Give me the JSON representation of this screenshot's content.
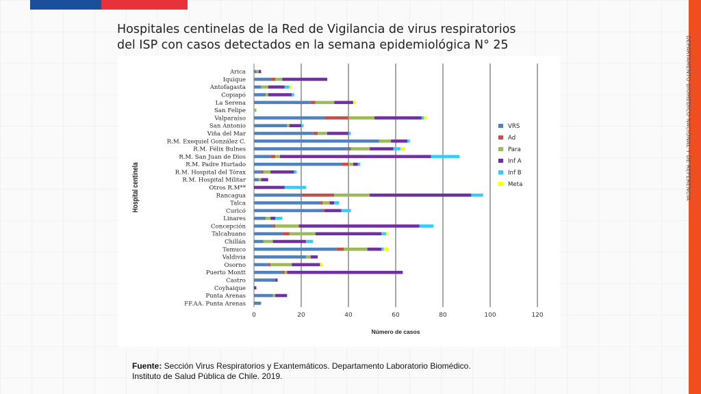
{
  "header": {
    "title_line1": "Hospitales centinelas de la Red de Vigilancia de virus respiratorios",
    "title_line2": "del ISP con casos detectados en la semana epidemiológica N° 25"
  },
  "side_label": "DEPARTAMENTO BIOMÉDICO NACIONAL Y DE REFERENCIA",
  "footer": {
    "label": "Fuente:",
    "line1": " Sección Virus Respiratorios y Exantemáticos. Departamento Laboratorio Biomédico.",
    "line2": "Instituto de Salud Pública de Chile. 2019."
  },
  "chart_data": {
    "type": "bar",
    "orientation": "horizontal",
    "stacked": true,
    "xlabel": "Número de casos",
    "ylabel": "Hospital centinela",
    "xlim": [
      0,
      120
    ],
    "xticks": [
      0,
      20,
      40,
      60,
      80,
      100,
      120
    ],
    "grid": "vertical",
    "legend_position": "right",
    "categories": [
      "Arica",
      "Iquique",
      "Antofagasta",
      "Copiapó",
      "La Serena",
      "San Felipe",
      "Valparaíso",
      "San Antonio",
      "Viña del Mar",
      "R.M. Exequiel González C.",
      "R.M. Félix Bulnes",
      "R.M. San Juan de Dios",
      "R.M. Padre Hurtado",
      "R.M. Hospital del Tórax",
      "R.M. Hospital Militar",
      "Otros R.M**",
      "Rancagua",
      "Talca",
      "Curicó",
      "Linares",
      "Concepción",
      "Talcahuano",
      "Chillán",
      "Temuco",
      "Valdivia",
      "Osorno",
      "Puerto Montt",
      "Castro",
      "Coyhaique",
      "Punta Arenas",
      "FF.AA. Punta Arenas"
    ],
    "series": [
      {
        "name": "VRS",
        "color": "#4f81bd",
        "values": [
          1,
          7,
          3,
          5,
          24,
          0,
          30,
          14,
          25,
          53,
          40,
          7,
          37,
          3,
          2,
          0,
          20,
          28,
          29,
          5,
          8,
          12,
          4,
          35,
          22,
          6,
          12,
          9,
          0,
          8,
          3
        ]
      },
      {
        "name": "Ad",
        "color": "#c0504d",
        "values": [
          0,
          2,
          0,
          0,
          2,
          0,
          10,
          0,
          2,
          0,
          1,
          2,
          3,
          1,
          0,
          0,
          14,
          1,
          1,
          0,
          1,
          3,
          0,
          3,
          0,
          1,
          1,
          0,
          0,
          0,
          0
        ]
      },
      {
        "name": "Para",
        "color": "#9bbb59",
        "values": [
          1,
          3,
          3,
          1,
          8,
          1,
          11,
          1,
          4,
          5,
          8,
          2,
          2,
          3,
          1,
          0,
          15,
          3,
          0,
          2,
          10,
          11,
          4,
          10,
          2,
          9,
          1,
          0,
          0,
          1,
          0
        ]
      },
      {
        "name": "Inf A",
        "color": "#7030a0",
        "values": [
          1,
          19,
          7,
          10,
          8,
          0,
          20,
          5,
          9,
          7,
          10,
          64,
          2,
          10,
          3,
          13,
          43,
          2,
          7,
          2,
          51,
          28,
          14,
          6,
          3,
          12,
          49,
          1,
          1,
          5,
          0
        ]
      },
      {
        "name": "Inf B",
        "color": "#33ccff",
        "values": [
          0,
          0,
          2,
          1,
          0,
          0,
          1,
          1,
          1,
          1,
          3,
          12,
          1,
          1,
          0,
          9,
          5,
          2,
          4,
          3,
          6,
          2,
          3,
          1,
          0,
          0,
          0,
          0,
          0,
          0,
          0
        ]
      },
      {
        "name": "Meta",
        "color": "#ffff00",
        "values": [
          0,
          0,
          1,
          0,
          1,
          0,
          1,
          0,
          0,
          0,
          2,
          0,
          0,
          0,
          0,
          0,
          0,
          0,
          0,
          0,
          0,
          1,
          0,
          2,
          0,
          1,
          0,
          0,
          0,
          0,
          0
        ]
      }
    ]
  }
}
